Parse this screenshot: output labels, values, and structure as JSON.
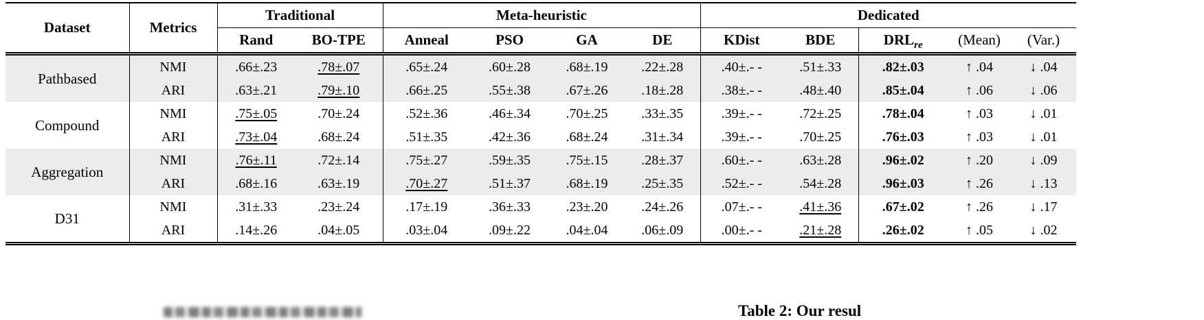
{
  "colors": {
    "row_shading": "#ececec",
    "text": "#000000",
    "background": "#ffffff"
  },
  "table": {
    "header": {
      "dataset": "Dataset",
      "metrics": "Metrics",
      "group_traditional": "Traditional",
      "group_meta": "Meta-heuristic",
      "group_dedicated": "Dedicated",
      "col_rand": "Rand",
      "col_botpe": "BO-TPE",
      "col_anneal": "Anneal",
      "col_pso": "PSO",
      "col_ga": "GA",
      "col_de": "DE",
      "col_kdist": "KDist",
      "col_bde": "BDE",
      "col_drl_base": "DRL",
      "col_drl_sub": "re",
      "col_mean": "(Mean)",
      "col_var": "(Var.)"
    },
    "groups": [
      {
        "dataset": "Pathbased",
        "shaded": true,
        "rows": [
          {
            "metric": "NMI",
            "cells": [
              {
                "t": ".66±.23"
              },
              {
                "t": ".78±.07",
                "u": true
              },
              {
                "t": ".65±.24"
              },
              {
                "t": ".60±.28"
              },
              {
                "t": ".68±.19"
              },
              {
                "t": ".22±.28"
              },
              {
                "t": ".40±.- -"
              },
              {
                "t": ".51±.33"
              },
              {
                "t": ".82±.03",
                "b": true
              },
              {
                "t": "↑ .04"
              },
              {
                "t": "↓ .04"
              }
            ]
          },
          {
            "metric": "ARI",
            "cells": [
              {
                "t": ".63±.21"
              },
              {
                "t": ".79±.10",
                "u": true
              },
              {
                "t": ".66±.25"
              },
              {
                "t": ".55±.38"
              },
              {
                "t": ".67±.26"
              },
              {
                "t": ".18±.28"
              },
              {
                "t": ".38±.- -"
              },
              {
                "t": ".48±.40"
              },
              {
                "t": ".85±.04",
                "b": true
              },
              {
                "t": "↑ .06"
              },
              {
                "t": "↓ .06"
              }
            ]
          }
        ]
      },
      {
        "dataset": "Compound",
        "shaded": false,
        "rows": [
          {
            "metric": "NMI",
            "cells": [
              {
                "t": ".75±.05",
                "u": true
              },
              {
                "t": ".70±.24"
              },
              {
                "t": ".52±.36"
              },
              {
                "t": ".46±.34"
              },
              {
                "t": ".70±.25"
              },
              {
                "t": ".33±.35"
              },
              {
                "t": ".39±.- -"
              },
              {
                "t": ".72±.25"
              },
              {
                "t": ".78±.04",
                "b": true
              },
              {
                "t": "↑ .03"
              },
              {
                "t": "↓ .01"
              }
            ]
          },
          {
            "metric": "ARI",
            "cells": [
              {
                "t": ".73±.04",
                "u": true
              },
              {
                "t": ".68±.24"
              },
              {
                "t": ".51±.35"
              },
              {
                "t": ".42±.36"
              },
              {
                "t": ".68±.24"
              },
              {
                "t": ".31±.34"
              },
              {
                "t": ".39±.- -"
              },
              {
                "t": ".70±.25"
              },
              {
                "t": ".76±.03",
                "b": true
              },
              {
                "t": "↑ .03"
              },
              {
                "t": "↓ .01"
              }
            ]
          }
        ]
      },
      {
        "dataset": "Aggregation",
        "shaded": true,
        "rows": [
          {
            "metric": "NMI",
            "cells": [
              {
                "t": ".76±.11",
                "u": true
              },
              {
                "t": ".72±.14"
              },
              {
                "t": ".75±.27"
              },
              {
                "t": ".59±.35"
              },
              {
                "t": ".75±.15"
              },
              {
                "t": ".28±.37"
              },
              {
                "t": ".60±.- -"
              },
              {
                "t": ".63±.28"
              },
              {
                "t": ".96±.02",
                "b": true
              },
              {
                "t": "↑ .20"
              },
              {
                "t": "↓ .09"
              }
            ]
          },
          {
            "metric": "ARI",
            "cells": [
              {
                "t": ".68±.16"
              },
              {
                "t": ".63±.19"
              },
              {
                "t": ".70±.27",
                "u": true
              },
              {
                "t": ".51±.37"
              },
              {
                "t": ".68±.19"
              },
              {
                "t": ".25±.35"
              },
              {
                "t": ".52±.- -"
              },
              {
                "t": ".54±.28"
              },
              {
                "t": ".96±.03",
                "b": true
              },
              {
                "t": "↑ .26"
              },
              {
                "t": "↓ .13"
              }
            ]
          }
        ]
      },
      {
        "dataset": "D31",
        "shaded": false,
        "rows": [
          {
            "metric": "NMI",
            "cells": [
              {
                "t": ".31±.33"
              },
              {
                "t": ".23±.24"
              },
              {
                "t": ".17±.19"
              },
              {
                "t": ".36±.33"
              },
              {
                "t": ".23±.20"
              },
              {
                "t": ".24±.26"
              },
              {
                "t": ".07±.- -"
              },
              {
                "t": ".41±.36",
                "u": true
              },
              {
                "t": ".67±.02",
                "b": true
              },
              {
                "t": "↑ .26"
              },
              {
                "t": "↓ .17"
              }
            ]
          },
          {
            "metric": "ARI",
            "cells": [
              {
                "t": ".14±.26"
              },
              {
                "t": ".04±.05"
              },
              {
                "t": ".03±.04"
              },
              {
                "t": ".09±.22"
              },
              {
                "t": ".04±.04"
              },
              {
                "t": ".06±.09"
              },
              {
                "t": ".00±.- -"
              },
              {
                "t": ".21±.28",
                "u": true
              },
              {
                "t": ".26±.02",
                "b": true
              },
              {
                "t": "↑ .05"
              },
              {
                "t": "↓ .02"
              }
            ]
          }
        ]
      }
    ]
  },
  "footer": {
    "table_caption_fragment": "Table 2: Our resul"
  }
}
